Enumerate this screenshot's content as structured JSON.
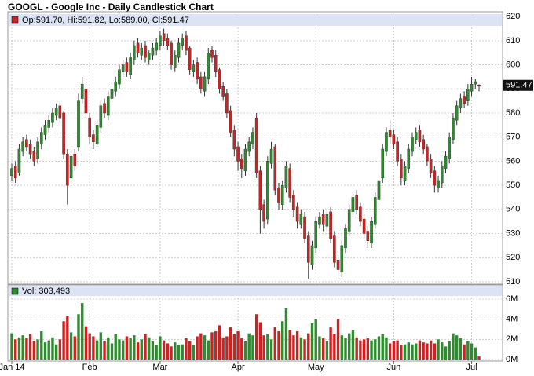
{
  "chart_data": {
    "type": "candlestick",
    "title": "GOOGL - Google Inc - Daily Candlestick Chart",
    "legend_text": "Op:591.70, Hi:591.82, Lo:589.00, Cl:591.47",
    "volume_legend_text": "Vol: 303,493",
    "up_color": "#2e8b2e",
    "down_color": "#cc2222",
    "grid": true,
    "categories": [
      "Jan 14",
      null,
      null,
      null,
      null,
      null,
      null,
      null,
      null,
      null,
      null,
      null,
      null,
      null,
      null,
      null,
      null,
      null,
      null,
      null,
      null,
      "Feb",
      null,
      null,
      null,
      null,
      null,
      null,
      null,
      null,
      null,
      null,
      null,
      null,
      null,
      null,
      null,
      null,
      null,
      null,
      "Mar",
      null,
      null,
      null,
      null,
      null,
      null,
      null,
      null,
      null,
      null,
      null,
      null,
      null,
      null,
      null,
      null,
      null,
      null,
      null,
      null,
      "Apr",
      null,
      null,
      null,
      null,
      null,
      null,
      null,
      null,
      null,
      null,
      null,
      null,
      null,
      null,
      null,
      null,
      null,
      null,
      null,
      null,
      "May",
      null,
      null,
      null,
      null,
      null,
      null,
      null,
      null,
      null,
      null,
      null,
      null,
      null,
      null,
      null,
      null,
      null,
      null,
      null,
      null,
      "Jun",
      null,
      null,
      null,
      null,
      null,
      null,
      null,
      null,
      null,
      null,
      null,
      null,
      null,
      null,
      null,
      null,
      null,
      null,
      null,
      null,
      "Jul",
      null,
      null
    ],
    "open": [
      554,
      558,
      555,
      564,
      569,
      567,
      564,
      561,
      567,
      571,
      574,
      576,
      579,
      583,
      580,
      563,
      553,
      563,
      566,
      586,
      590,
      578,
      571,
      567,
      574,
      584,
      579,
      586,
      589,
      592,
      597,
      601,
      596,
      602,
      609,
      604,
      608,
      602,
      604,
      606,
      608,
      613,
      611,
      609,
      599,
      603,
      608,
      612,
      607,
      597,
      601,
      595,
      589,
      594,
      606,
      604,
      598,
      591,
      588,
      581,
      573,
      566,
      561,
      556,
      564,
      567,
      578,
      556,
      542,
      536,
      559,
      566,
      549,
      542,
      549,
      557,
      546,
      541,
      534,
      537,
      529,
      517,
      524,
      534,
      538,
      533,
      539,
      529,
      519,
      514,
      524,
      531,
      539,
      546,
      541,
      536,
      531,
      526,
      534,
      544,
      553,
      564,
      573,
      571,
      568,
      561,
      552,
      557,
      564,
      569,
      573,
      569,
      566,
      561,
      556,
      549,
      551,
      557,
      561,
      569,
      577,
      582,
      587,
      585,
      589,
      592,
      591.7
    ],
    "high": [
      559,
      560,
      567,
      570,
      571,
      569,
      566,
      570,
      574,
      577,
      579,
      582,
      584,
      585,
      581,
      565,
      564,
      565,
      588,
      595,
      592,
      580,
      573,
      577,
      585,
      586,
      589,
      592,
      595,
      600,
      602,
      603,
      605,
      610,
      611,
      609,
      610,
      606,
      609,
      611,
      614,
      615,
      613,
      610,
      606,
      611,
      613,
      614,
      608,
      602,
      603,
      597,
      597,
      607,
      608,
      606,
      599,
      593,
      590,
      583,
      575,
      568,
      563,
      567,
      570,
      574,
      580,
      558,
      544,
      562,
      568,
      567,
      551,
      552,
      560,
      559,
      548,
      543,
      540,
      539,
      531,
      527,
      537,
      539,
      540,
      540,
      541,
      531,
      521,
      527,
      534,
      542,
      547,
      548,
      543,
      538,
      533,
      537,
      547,
      554,
      567,
      574,
      577,
      573,
      570,
      563,
      560,
      567,
      572,
      574,
      575,
      571,
      567,
      563,
      558,
      554,
      560,
      564,
      572,
      580,
      585,
      588,
      589,
      592,
      595,
      594,
      591.82
    ],
    "low": [
      552,
      551,
      554,
      562,
      564,
      561,
      558,
      559,
      565,
      569,
      572,
      574,
      577,
      576,
      561,
      542,
      551,
      556,
      564,
      584,
      578,
      567,
      565,
      566,
      572,
      578,
      577,
      584,
      587,
      590,
      595,
      595,
      594,
      600,
      603,
      602,
      601,
      600,
      602,
      604,
      606,
      608,
      606,
      598,
      597,
      601,
      606,
      604,
      596,
      595,
      592,
      588,
      587,
      592,
      601,
      595,
      588,
      585,
      578,
      570,
      562,
      556,
      553,
      554,
      562,
      565,
      553,
      530,
      532,
      534,
      557,
      546,
      540,
      540,
      547,
      543,
      537,
      532,
      532,
      526,
      511,
      515,
      522,
      532,
      531,
      531,
      526,
      516,
      511,
      512,
      522,
      529,
      537,
      538,
      533,
      528,
      524,
      524,
      532,
      542,
      551,
      562,
      567,
      565,
      558,
      550,
      550,
      555,
      562,
      567,
      566,
      563,
      558,
      553,
      547,
      547,
      549,
      555,
      559,
      567,
      575,
      580,
      582,
      583,
      587,
      590,
      589.0
    ],
    "close": [
      557,
      553,
      565,
      568,
      566,
      563,
      560,
      568,
      572,
      575,
      577,
      580,
      582,
      578,
      563,
      550,
      562,
      558,
      585,
      592,
      580,
      570,
      568,
      575,
      583,
      580,
      587,
      590,
      593,
      598,
      600,
      597,
      603,
      608,
      605,
      607,
      603,
      605,
      607,
      609,
      612,
      610,
      608,
      600,
      604,
      609,
      611,
      606,
      598,
      600,
      594,
      590,
      595,
      605,
      603,
      597,
      590,
      587,
      580,
      572,
      565,
      560,
      557,
      565,
      568,
      572,
      555,
      540,
      535,
      560,
      565,
      548,
      543,
      550,
      558,
      545,
      540,
      535,
      538,
      528,
      518,
      525,
      535,
      537,
      534,
      538,
      528,
      518,
      515,
      525,
      532,
      540,
      545,
      540,
      535,
      530,
      527,
      535,
      545,
      552,
      565,
      572,
      570,
      567,
      560,
      553,
      558,
      565,
      570,
      572,
      568,
      565,
      560,
      555,
      550,
      552,
      558,
      562,
      570,
      578,
      583,
      586,
      584,
      590,
      592,
      593,
      591.47
    ],
    "volume": [
      2.6,
      2.0,
      2.2,
      2.4,
      2.1,
      2.5,
      1.8,
      2.0,
      2.8,
      1.7,
      1.9,
      2.2,
      1.5,
      2.0,
      3.8,
      4.3,
      2.7,
      2.3,
      4.5,
      5.6,
      3.3,
      2.6,
      2.3,
      1.9,
      2.7,
      1.8,
      2.2,
      1.6,
      2.5,
      2.0,
      1.9,
      2.3,
      2.1,
      2.4,
      1.7,
      2.0,
      2.5,
      2.2,
      1.8,
      1.4,
      2.3,
      1.9,
      1.6,
      1.3,
      1.7,
      1.4,
      1.5,
      2.1,
      1.8,
      1.4,
      2.3,
      2.6,
      2.4,
      1.9,
      2.7,
      2.8,
      3.4,
      2.2,
      2.3,
      3.2,
      2.5,
      2.8,
      2.1,
      1.8,
      2.6,
      2.4,
      4.5,
      3.7,
      2.4,
      2.5,
      2.0,
      3.2,
      2.8,
      3.8,
      5.1,
      2.9,
      2.4,
      2.8,
      2.2,
      2.0,
      2.6,
      3.6,
      4.0,
      2.3,
      2.1,
      1.8,
      3.2,
      2.5,
      4.0,
      2.4,
      2.1,
      2.6,
      2.9,
      2.2,
      1.9,
      2.0,
      2.1,
      1.9,
      2.0,
      2.3,
      2.5,
      2.2,
      1.6,
      1.8,
      1.9,
      1.4,
      1.5,
      1.7,
      1.5,
      1.6,
      1.9,
      1.7,
      1.6,
      1.9,
      1.6,
      2.0,
      1.7,
      1.3,
      1.8,
      2.6,
      2.4,
      2.1,
      1.5,
      1.8,
      1.6,
      1.2,
      0.303493
    ],
    "ylim": [
      509,
      622
    ],
    "yticks": [
      510,
      520,
      530,
      540,
      550,
      560,
      570,
      580,
      590,
      600,
      610,
      620
    ],
    "volume_ylim": [
      0,
      7.4
    ],
    "volume_yticks": [
      {
        "value": 0,
        "label": "0M"
      },
      {
        "value": 2,
        "label": "2M"
      },
      {
        "value": 4,
        "label": "4M"
      },
      {
        "value": 6,
        "label": "6M"
      }
    ]
  }
}
